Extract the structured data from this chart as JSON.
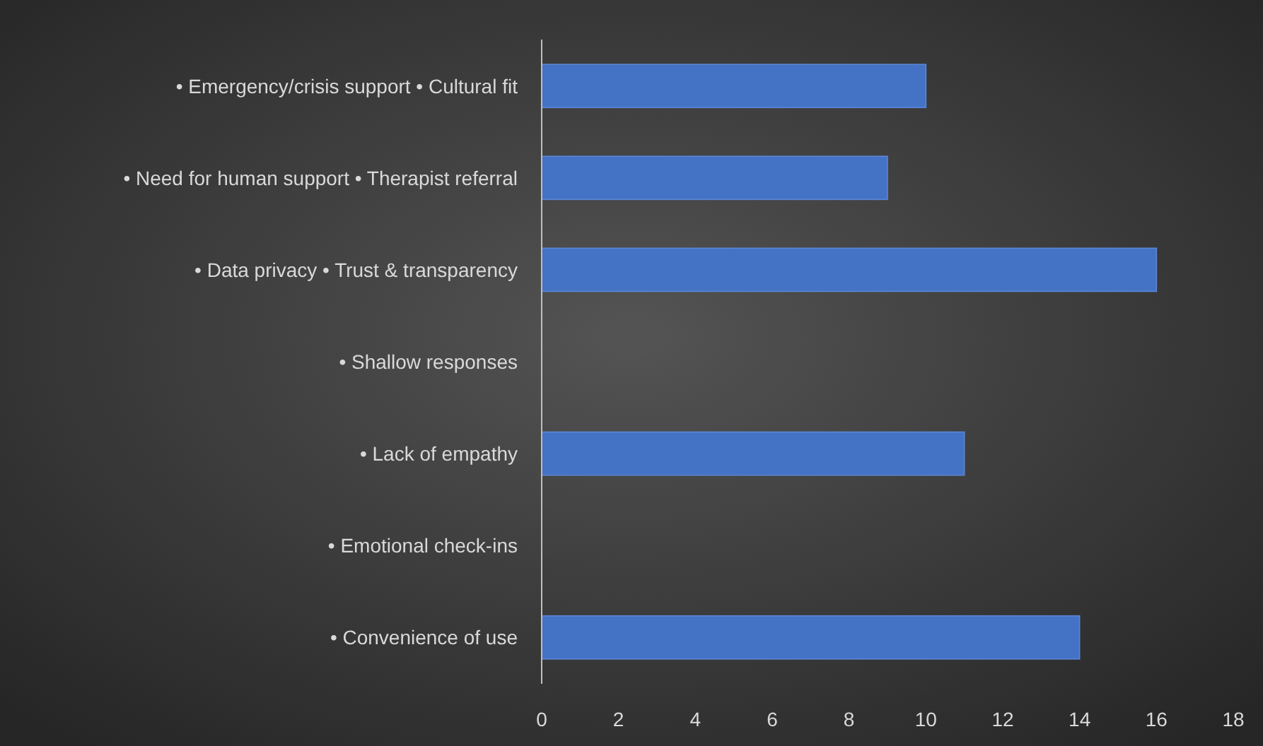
{
  "chart_data": {
    "type": "bar",
    "orientation": "horizontal",
    "categories": [
      "• Emergency/crisis support • Cultural fit",
      "• Need for human support • Therapist referral",
      "• Data privacy • Trust & transparency",
      "• Shallow responses",
      "• Lack of empathy",
      "• Emotional check-ins",
      "• Convenience of use"
    ],
    "values": [
      10,
      9,
      16,
      null,
      11,
      null,
      14
    ],
    "color": "#4472c4",
    "xlim": [
      0,
      18
    ],
    "xticks": [
      0,
      2,
      4,
      6,
      8,
      10,
      12,
      14,
      16,
      18
    ],
    "grid": false
  }
}
